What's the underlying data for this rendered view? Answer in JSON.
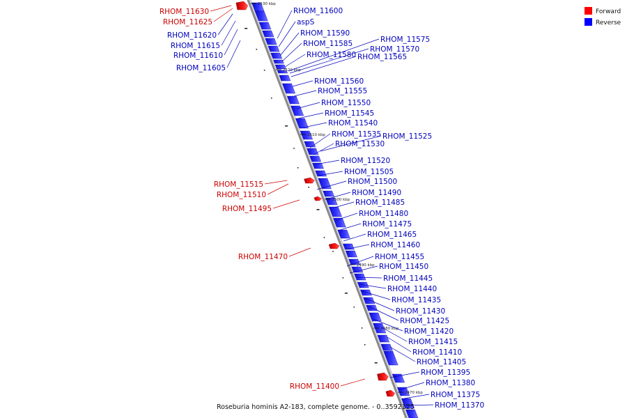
{
  "caption": "Roseburia hominis A2-183, complete genome. - 0..3592125",
  "legend": [
    {
      "label": "Forward",
      "color": "#ff0000"
    },
    {
      "label": "Reverse",
      "color": "#0000ff"
    }
  ],
  "colors": {
    "forward": "#dd0000",
    "reverse": "#1a1aee",
    "backbone": "#8a8a8a"
  },
  "ticks": [
    "2530 kbp",
    "2520 kbp",
    "2510 kbp",
    "2500 kbp",
    "2490 kbp",
    "2480 kbp",
    "2470 kbp"
  ],
  "forward_genes": [
    "RHOM_11630",
    "RHOM_11625",
    "RHOM_11515",
    "RHOM_11510",
    "RHOM_11495",
    "RHOM_11470",
    "RHOM_11400"
  ],
  "reverse_left_genes": [
    "RHOM_11620",
    "RHOM_11615",
    "RHOM_11610",
    "RHOM_11605"
  ],
  "reverse_genes": [
    "RHOM_11600",
    "aspS",
    "RHOM_11590",
    "RHOM_11585",
    "RHOM_11580",
    "RHOM_11575",
    "RHOM_11570",
    "RHOM_11565",
    "RHOM_11560",
    "RHOM_11555",
    "RHOM_11550",
    "RHOM_11545",
    "RHOM_11540",
    "RHOM_11535",
    "RHOM_11525",
    "RHOM_11530",
    "RHOM_11520",
    "RHOM_11505",
    "RHOM_11500",
    "RHOM_11490",
    "RHOM_11485",
    "RHOM_11480",
    "RHOM_11475",
    "RHOM_11465",
    "RHOM_11460",
    "RHOM_11455",
    "RHOM_11450",
    "RHOM_11445",
    "RHOM_11440",
    "RHOM_11435",
    "RHOM_11430",
    "RHOM_11425",
    "RHOM_11420",
    "RHOM_11415",
    "RHOM_11410",
    "RHOM_11405",
    "RHOM_11395",
    "RHOM_11380",
    "RHOM_11375",
    "RHOM_11370"
  ]
}
